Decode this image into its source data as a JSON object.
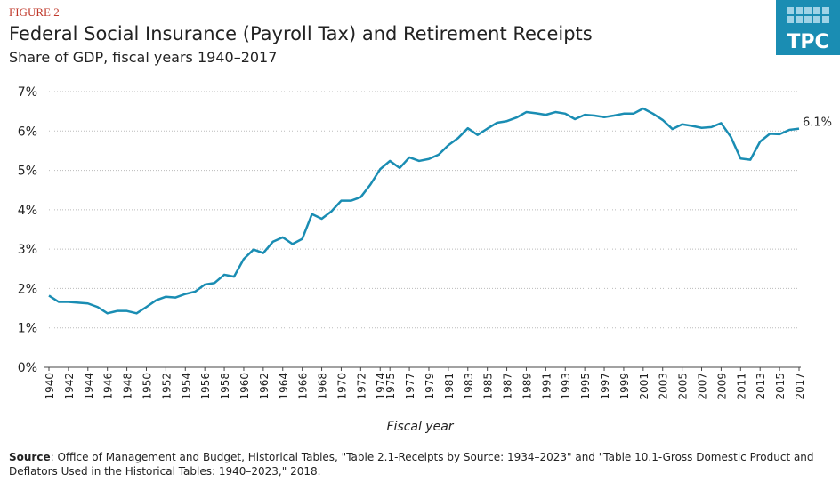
{
  "figure_label": "FIGURE 2",
  "logo": "TPC",
  "source_label": "Source",
  "source": ": Office of Management and Budget, Historical Tables, \"Table 2.1-Receipts by Source: 1934–2023\" and \"Table 10.1-Gross Domestic Product and Deflators Used in the Historical Tables: 1940–2023,\" 2018.",
  "chart_data": {
    "type": "line",
    "title": "Federal Social Insurance (Payroll Tax) and Retirement Receipts",
    "subtitle": "Share of GDP, fiscal years 1940–2017",
    "x_label": "Fiscal year",
    "grid": true,
    "x": [
      1940,
      1941,
      1942,
      1943,
      1944,
      1945,
      1946,
      1947,
      1948,
      1949,
      1950,
      1951,
      1952,
      1953,
      1954,
      1955,
      1956,
      1957,
      1958,
      1959,
      1960,
      1961,
      1962,
      1963,
      1964,
      1965,
      1966,
      1967,
      1968,
      1969,
      1970,
      1971,
      1972,
      1973,
      1974,
      1975,
      1976,
      1977,
      1978,
      1979,
      1980,
      1981,
      1982,
      1983,
      1984,
      1985,
      1986,
      1987,
      1988,
      1989,
      1990,
      1991,
      1992,
      1993,
      1994,
      1995,
      1996,
      1997,
      1998,
      1999,
      2000,
      2001,
      2002,
      2003,
      2004,
      2005,
      2006,
      2007,
      2008,
      2009,
      2010,
      2011,
      2012,
      2013,
      2014,
      2015,
      2016,
      2017
    ],
    "series": [
      {
        "name": "Share of GDP",
        "color": "#1a8db3",
        "values": [
          1.82,
          1.66,
          1.66,
          1.64,
          1.62,
          1.53,
          1.37,
          1.43,
          1.43,
          1.37,
          1.53,
          1.7,
          1.79,
          1.77,
          1.86,
          1.92,
          2.1,
          2.14,
          2.35,
          2.3,
          2.75,
          2.99,
          2.9,
          3.19,
          3.3,
          3.13,
          3.26,
          3.89,
          3.77,
          3.96,
          4.23,
          4.23,
          4.32,
          4.64,
          5.03,
          5.24,
          5.06,
          5.33,
          5.24,
          5.29,
          5.4,
          5.64,
          5.82,
          6.07,
          5.9,
          6.06,
          6.21,
          6.25,
          6.34,
          6.48,
          6.45,
          6.41,
          6.48,
          6.44,
          6.3,
          6.41,
          6.39,
          6.35,
          6.39,
          6.44,
          6.44,
          6.57,
          6.44,
          6.28,
          6.05,
          6.17,
          6.13,
          6.08,
          6.1,
          6.2,
          5.85,
          5.3,
          5.27,
          5.73,
          5.93,
          5.92,
          6.03,
          6.06
        ],
        "value_labels": [
          null,
          null,
          null,
          null,
          null,
          null,
          null,
          null,
          null,
          null,
          null,
          null,
          null,
          null,
          null,
          null,
          null,
          null,
          null,
          null,
          null,
          null,
          null,
          null,
          null,
          null,
          null,
          null,
          null,
          null,
          null,
          null,
          null,
          null,
          null,
          null,
          null,
          null,
          null,
          null,
          null,
          null,
          null,
          null,
          null,
          null,
          null,
          null,
          null,
          null,
          null,
          null,
          null,
          null,
          null,
          null,
          null,
          null,
          null,
          null,
          null,
          null,
          null,
          null,
          null,
          null,
          null,
          null,
          null,
          null,
          null,
          null,
          null,
          null,
          null,
          null,
          null,
          "6.1%"
        ]
      }
    ],
    "xlim": [
      1940,
      2017
    ],
    "xticks": [
      1940,
      1942,
      1944,
      1946,
      1948,
      1950,
      1952,
      1954,
      1956,
      1958,
      1960,
      1962,
      1964,
      1966,
      1968,
      1970,
      1972,
      1974,
      1975,
      1977,
      1979,
      1981,
      1983,
      1985,
      1987,
      1989,
      1991,
      1993,
      1995,
      1997,
      1999,
      2001,
      2003,
      2005,
      2007,
      2009,
      2011,
      2013,
      2015,
      2017
    ],
    "ylim": [
      0,
      7
    ],
    "yticks": [
      {
        "value": 0,
        "label": "0%"
      },
      {
        "value": 1,
        "label": "1%"
      },
      {
        "value": 2,
        "label": "2%"
      },
      {
        "value": 3,
        "label": "3%"
      },
      {
        "value": 4,
        "label": "4%"
      },
      {
        "value": 5,
        "label": "5%"
      },
      {
        "value": 6,
        "label": "6%"
      },
      {
        "value": 7,
        "label": "7%"
      }
    ]
  }
}
